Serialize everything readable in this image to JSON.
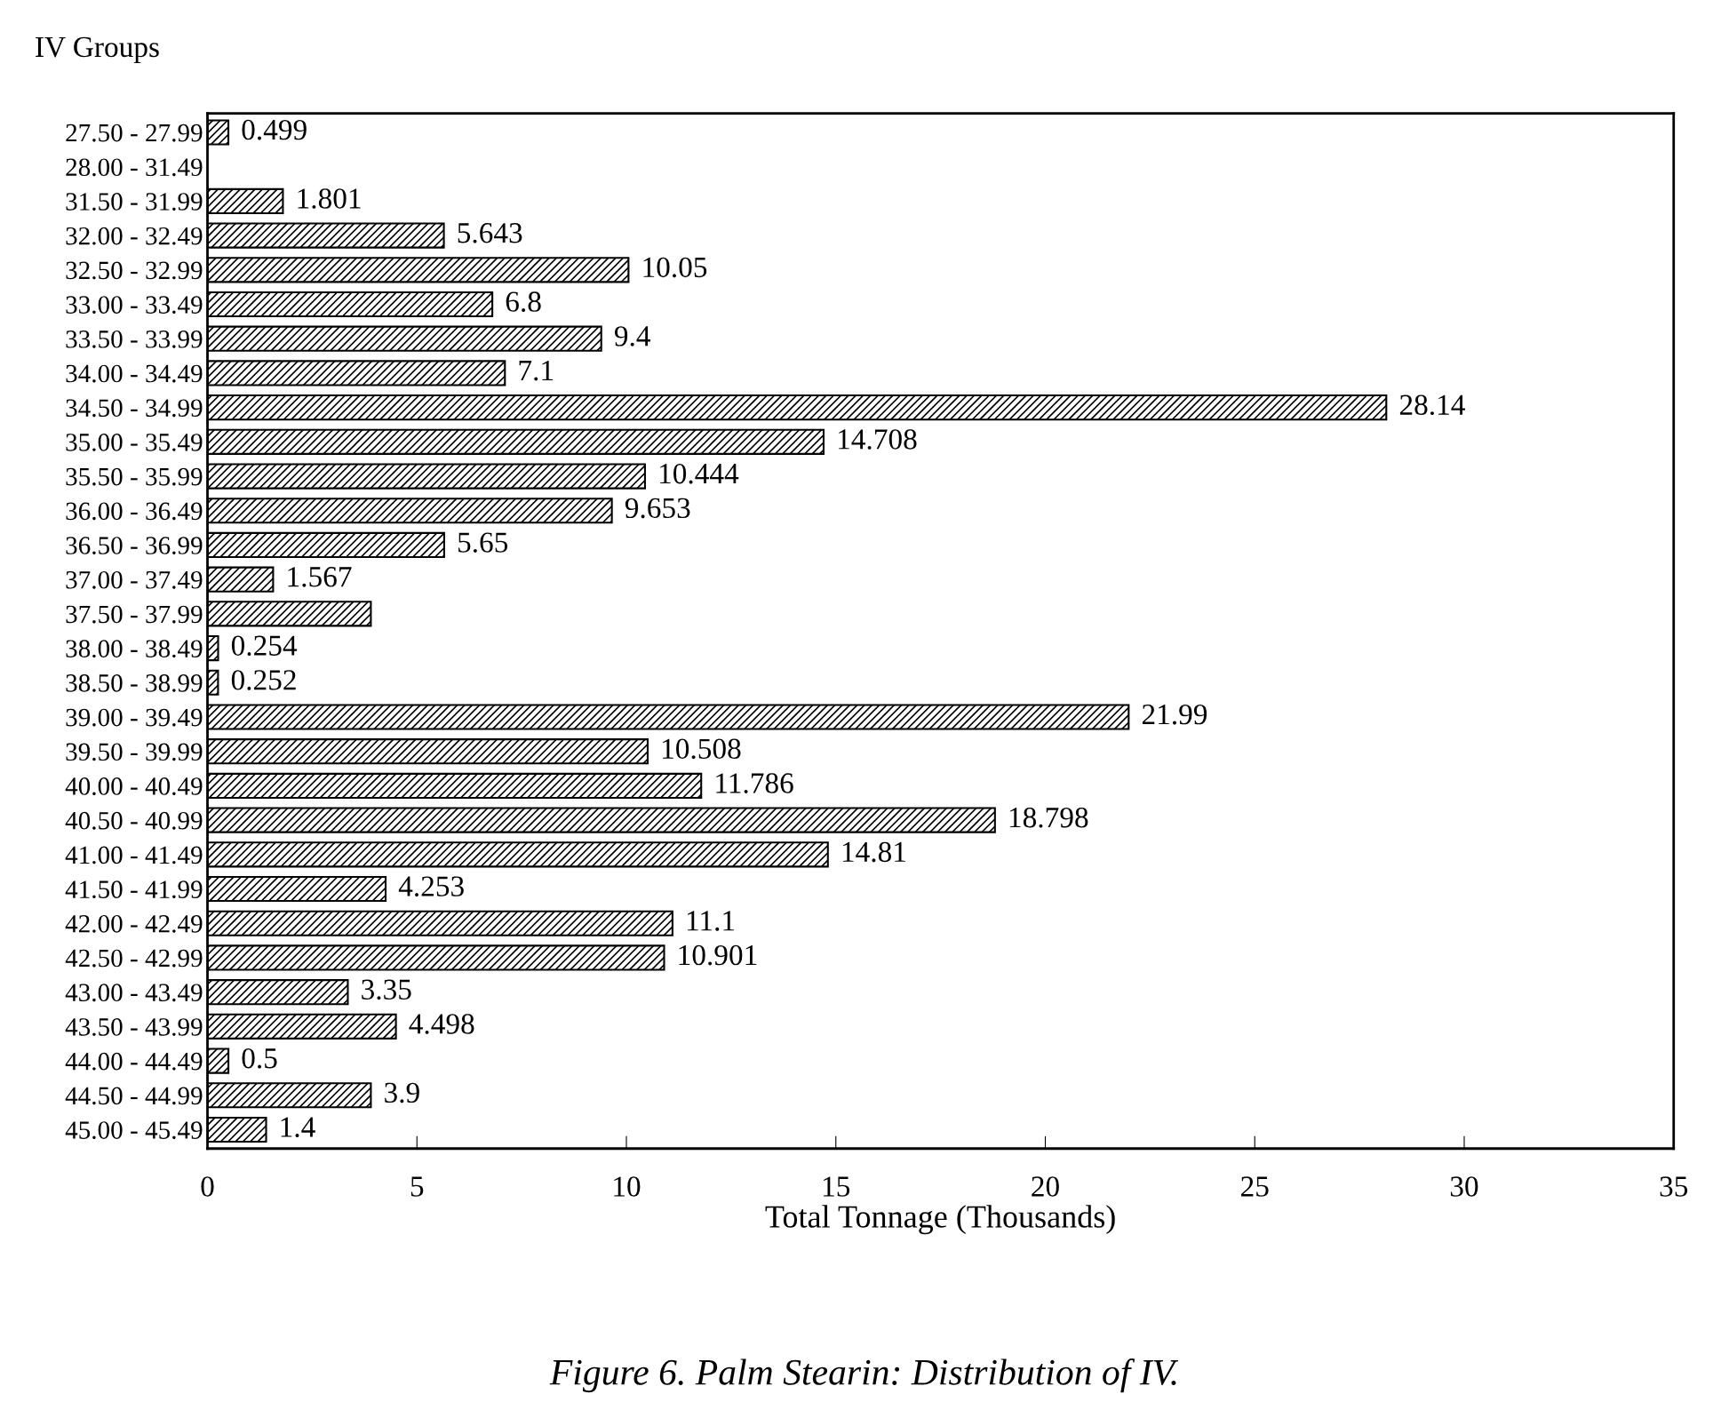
{
  "chart_data": {
    "type": "bar",
    "orientation": "horizontal",
    "title": "Figure 6. Palm Stearin: Distribution of IV.",
    "xlabel": "Total Tonnage (Thousands)",
    "ylabel": "IV Groups",
    "categories": [
      "27.50 - 27.99",
      "28.00 - 31.49",
      "31.50 - 31.99",
      "32.00 - 32.49",
      "32.50 - 32.99",
      "33.00 - 33.49",
      "33.50 - 33.99",
      "34.00 - 34.49",
      "34.50 - 34.99",
      "35.00 - 35.49",
      "35.50 - 35.99",
      "36.00 - 36.49",
      "36.50 - 36.99",
      "37.00 - 37.49",
      "37.50 - 37.99",
      "38.00 - 38.49",
      "38.50 - 38.99",
      "39.00 - 39.49",
      "39.50 - 39.99",
      "40.00 - 40.49",
      "40.50 - 40.99",
      "41.00 - 41.49",
      "41.50 - 41.99",
      "42.00 - 42.49",
      "42.50 - 42.99",
      "43.00 - 43.49",
      "43.50 - 43.99",
      "44.00 - 44.49",
      "44.50 - 44.99",
      "45.00 - 45.49"
    ],
    "values": [
      0.499,
      null,
      1.801,
      5.643,
      10.05,
      6.8,
      9.4,
      7.1,
      28.14,
      14.708,
      10.444,
      9.653,
      5.65,
      1.567,
      3.9,
      0.254,
      0.252,
      21.99,
      10.508,
      11.786,
      18.798,
      14.81,
      4.253,
      11.1,
      10.901,
      3.35,
      4.498,
      0.5,
      3.9,
      1.4
    ],
    "value_labels": [
      "0.499",
      null,
      "1.801",
      "5.643",
      "10.05",
      "6.8",
      "9.4",
      "7.1",
      "28.14",
      "14.708",
      "10.444",
      "9.653",
      "5.65",
      "1.567",
      null,
      "0.254",
      "0.252",
      "21.99",
      "10.508",
      "11.786",
      "18.798",
      "14.81",
      "4.253",
      "11.1",
      "10.901",
      "3.35",
      "4.498",
      "0.5",
      "3.9",
      "1.4"
    ],
    "color": "#000000",
    "xlim": [
      0,
      35
    ],
    "xticks": [
      0,
      5,
      10,
      15,
      20,
      25,
      30,
      35
    ],
    "grid": false,
    "legend": false
  }
}
